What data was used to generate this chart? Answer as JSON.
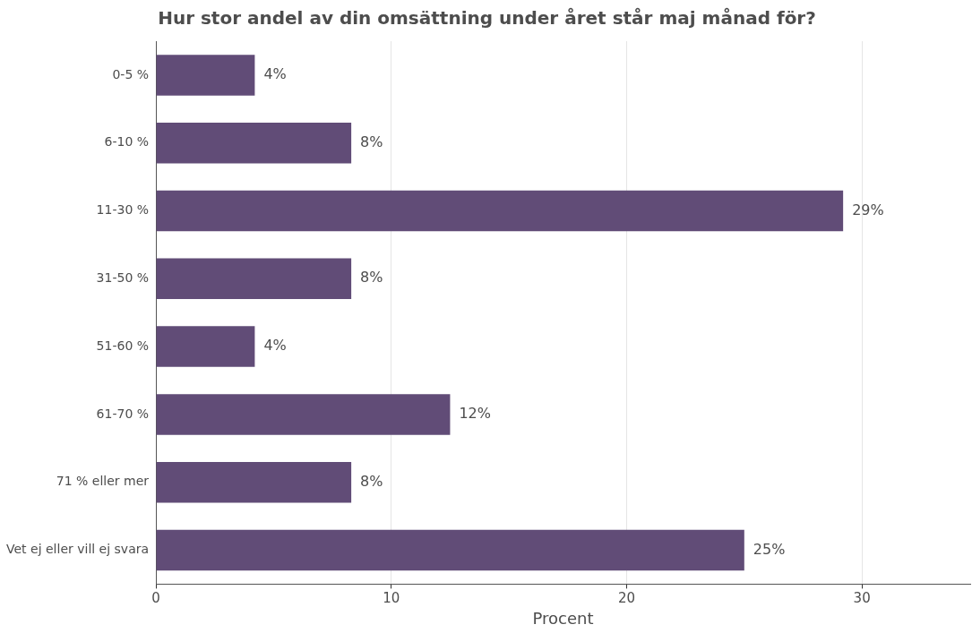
{
  "chart_data": {
    "type": "bar",
    "orientation": "horizontal",
    "title": "Hur stor andel av din omsättning under året står maj månad för?",
    "xlabel": "Procent",
    "categories": [
      "0-5 %",
      "6-10 %",
      "11-30 %",
      "31-50 %",
      "51-60 %",
      "61-70 %",
      "71 % eller mer",
      "Vet ej eller vill ej svara"
    ],
    "values": [
      4.2,
      8.3,
      29.2,
      8.3,
      4.2,
      12.5,
      8.3,
      25.0
    ],
    "value_labels": [
      "4%",
      "8%",
      "29%",
      "8%",
      "4%",
      "12%",
      "8%",
      "25%"
    ],
    "color": "#614c77",
    "xlim": [
      0,
      34.6
    ],
    "xticks": [
      0,
      10,
      20,
      30
    ],
    "grid": "x",
    "legend": false
  }
}
